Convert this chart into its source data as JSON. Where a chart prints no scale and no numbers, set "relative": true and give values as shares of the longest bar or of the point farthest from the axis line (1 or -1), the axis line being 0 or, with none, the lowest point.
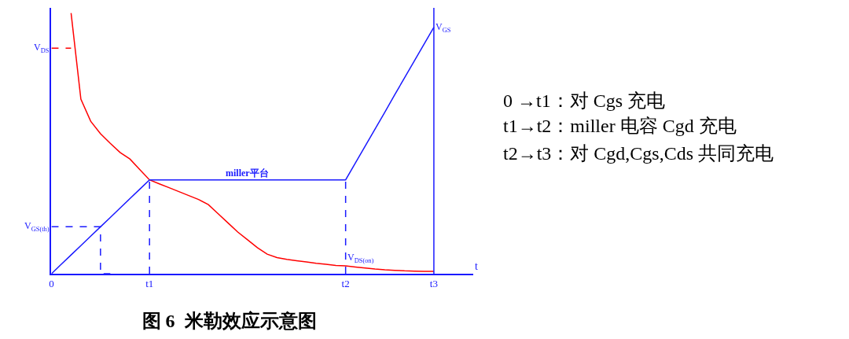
{
  "chart_data": {
    "type": "line",
    "title": "图 6  米勒效应示意图",
    "xlabel": "t",
    "relative": true,
    "categories": [
      "0",
      null,
      null,
      null,
      null,
      null,
      null,
      null,
      null,
      null,
      "t1",
      null,
      null,
      null,
      null,
      null,
      null,
      null,
      null,
      null,
      null,
      null,
      null,
      null,
      null,
      null,
      null,
      null,
      null,
      null,
      "t2",
      null,
      null,
      null,
      null,
      null,
      null,
      null,
      null,
      "t3",
      null,
      null,
      null,
      null
    ],
    "marker": "none",
    "series": [
      {
        "color": "#ff0000",
        "values": [
          null,
          null,
          1,
          0.67,
          0.585,
          0.537,
          0.5,
          0.465,
          0.44,
          0.4,
          0.36,
          0.345,
          0.33,
          0.315,
          0.3,
          0.285,
          0.265,
          0.23,
          0.195,
          0.16,
          0.13,
          0.1,
          0.075,
          0.062,
          0.055,
          0.05,
          0.045,
          0.04,
          0.036,
          0.032,
          0.03,
          0.026,
          0.022,
          0.018,
          0.015,
          0.013,
          0.011,
          0.01,
          0.009,
          0.009,
          null,
          null,
          null,
          null
        ]
      },
      {
        "color": "#1a1aff",
        "values": [
          0,
          0.036,
          0.072,
          0.108,
          0.144,
          0.18,
          0.216,
          0.252,
          0.288,
          0.324,
          0.36,
          0.36,
          0.36,
          0.36,
          0.36,
          0.36,
          0.36,
          0.36,
          0.36,
          0.36,
          0.36,
          0.36,
          0.36,
          0.36,
          0.36,
          0.36,
          0.36,
          0.36,
          0.36,
          0.36,
          0.36,
          0.425,
          0.49,
          0.555,
          0.62,
          0.686,
          0.751,
          0.816,
          0.881,
          0.946,
          null,
          null,
          null,
          null
        ]
      },
      {
        "type": "step",
        "color": "#1a1aff",
        "line_style": "dashed",
        "values": [
          0.18,
          0.18,
          0.18,
          0.18,
          0.18,
          0.18,
          0,
          null,
          null,
          null,
          null,
          null,
          null,
          null,
          null,
          null,
          null,
          null,
          null,
          null,
          null,
          null,
          null,
          null,
          null,
          null,
          null,
          null,
          null,
          null,
          null,
          null,
          null,
          null,
          null,
          null,
          null,
          null,
          null,
          null,
          null,
          null,
          null,
          null
        ]
      },
      {
        "color": "#ff0000",
        "line_style": "dashed",
        "values": [
          0.865,
          0.865,
          0.865,
          null,
          null,
          null,
          null,
          null,
          null,
          null,
          null,
          null,
          null,
          null,
          null,
          null,
          null,
          null,
          null,
          null,
          null,
          null,
          null,
          null,
          null,
          null,
          null,
          null,
          null,
          null,
          null,
          null,
          null,
          null,
          null,
          null,
          null,
          null,
          null,
          null,
          null,
          null,
          null,
          null
        ]
      }
    ],
    "ref_lines": [
      {
        "axis": "x",
        "value": "t1",
        "color": "#1a1aff",
        "line_style": "dashed"
      },
      {
        "axis": "x",
        "value": "t2",
        "color": "#1a1aff",
        "line_style": "dashed"
      },
      {
        "axis": "x",
        "value": "t3",
        "color": "#1a1aff",
        "line_style": "solid"
      }
    ],
    "annotations": [
      {
        "text": "V$_{GS}$",
        "x": "t3",
        "y": 0.946
      },
      {
        "text": "V$_{DS(on)}$",
        "x": "t2",
        "y": 0.03
      },
      "V$_{GS(th)}$",
      "V$_{DS}$",
      "miller平台",
      "0 →t1：对 Cgs 充电",
      "t1→t2：miller 电容 Cgd 充电",
      "t2→t3：对 Cgd,Cgs,Cds 共同充电"
    ]
  }
}
